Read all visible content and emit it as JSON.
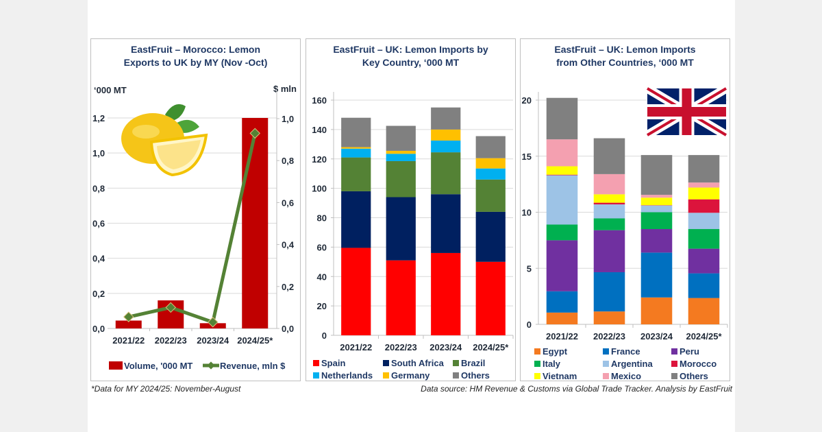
{
  "footnote_left": "*Data for MY 2024/25: November-August",
  "footnote_right": "Data source: HM Revenue & Customs via Global Trade Tracker. Analysis by EastFruit",
  "chart_data": [
    {
      "type": "bar+line",
      "title": "EastFruit – Morocco: Lemon Exports to UK by MY (Nov -Oct)",
      "title_lines": [
        "EastFruit – Morocco: Lemon",
        "Exports to UK by MY (Nov -Oct)"
      ],
      "ylabel_left": "‘000 MT",
      "ylabel_right": "$ mln",
      "categories": [
        "2021/22",
        "2022/23",
        "2023/24",
        "2024/25*"
      ],
      "ylim_left": [
        0,
        1.2
      ],
      "yticks_left": [
        "0,0",
        "0,2",
        "0,4",
        "0,6",
        "0,8",
        "1,0",
        "1,2"
      ],
      "ylim_right": [
        0,
        1.0
      ],
      "yticks_right": [
        "0,0",
        "0,2",
        "0,4",
        "0,6",
        "0,8",
        "1,0"
      ],
      "grid": true,
      "legend_position": "bottom",
      "series": [
        {
          "name": "Volume, '000 MT",
          "kind": "bar",
          "axis": "left",
          "color": "#c00000",
          "values": [
            0.045,
            0.16,
            0.03,
            1.2
          ]
        },
        {
          "name": "Revenue, mln $",
          "kind": "line",
          "axis": "right",
          "color": "#548235",
          "marker_color": "#70ad47",
          "values": [
            0.055,
            0.1,
            0.03,
            0.93
          ]
        }
      ],
      "image": "lemon-illustration"
    },
    {
      "type": "bar",
      "stacked": true,
      "title": "EastFruit –  UK: Lemon Imports by Key Country, ‘000 MT",
      "title_lines": [
        "EastFruit –  UK: Lemon Imports by",
        "Key Country, ‘000 MT"
      ],
      "categories": [
        "2021/22",
        "2022/23",
        "2023/24",
        "2024/25*"
      ],
      "ylim": [
        0,
        160
      ],
      "yticks": [
        "0",
        "20",
        "40",
        "60",
        "80",
        "100",
        "120",
        "140",
        "160"
      ],
      "grid": true,
      "legend_position": "bottom",
      "series": [
        {
          "name": "Spain",
          "color": "#ff0000",
          "values": [
            59.5,
            51,
            56,
            50
          ]
        },
        {
          "name": "South Africa",
          "color": "#002060",
          "values": [
            38.5,
            43,
            40,
            34
          ]
        },
        {
          "name": "Brazil",
          "color": "#548235",
          "values": [
            23,
            24.5,
            28.5,
            22
          ]
        },
        {
          "name": "Netherlands",
          "color": "#00b0f0",
          "values": [
            6,
            5,
            8,
            7.5
          ]
        },
        {
          "name": "Germany",
          "color": "#ffc000",
          "values": [
            1,
            2,
            7.5,
            7
          ]
        },
        {
          "name": "Others",
          "color": "#808080",
          "values": [
            20,
            17,
            15,
            15
          ]
        }
      ]
    },
    {
      "type": "bar",
      "stacked": true,
      "title": "EastFruit – UK: Lemon Imports from Other Countries, ‘000 MT",
      "title_lines": [
        "EastFruit – UK: Lemon Imports",
        "from Other Countries, ‘000 MT"
      ],
      "categories": [
        "2021/22",
        "2022/23",
        "2023/24",
        "2024/25*"
      ],
      "ylim": [
        0,
        20
      ],
      "yticks": [
        "0",
        "5",
        "10",
        "15",
        "20"
      ],
      "grid": true,
      "legend_position": "bottom",
      "series": [
        {
          "name": "Egypt",
          "color": "#f47a20",
          "values": [
            1.05,
            1.15,
            2.4,
            2.35
          ]
        },
        {
          "name": "France",
          "color": "#0070c0",
          "values": [
            1.9,
            3.5,
            4.0,
            2.2
          ]
        },
        {
          "name": "Peru",
          "color": "#7030a0",
          "values": [
            4.55,
            3.75,
            2.1,
            2.2
          ]
        },
        {
          "name": "Italy",
          "color": "#00b050",
          "values": [
            1.4,
            1.05,
            1.5,
            1.75
          ]
        },
        {
          "name": "Argentina",
          "color": "#9dc3e6",
          "values": [
            4.4,
            1.25,
            0.6,
            1.45
          ]
        },
        {
          "name": "Morocco",
          "color": "#dc143c",
          "values": [
            0.05,
            0.15,
            0.03,
            1.2
          ]
        },
        {
          "name": "Vietnam",
          "color": "#ffff00",
          "values": [
            0.75,
            0.75,
            0.67,
            1.05
          ]
        },
        {
          "name": "Mexico",
          "color": "#f4a0b0",
          "values": [
            2.4,
            1.8,
            0.25,
            0.45
          ]
        },
        {
          "name": "Others",
          "color": "#808080",
          "values": [
            3.7,
            3.2,
            3.55,
            2.45
          ]
        }
      ],
      "image": "uk-flag"
    }
  ]
}
